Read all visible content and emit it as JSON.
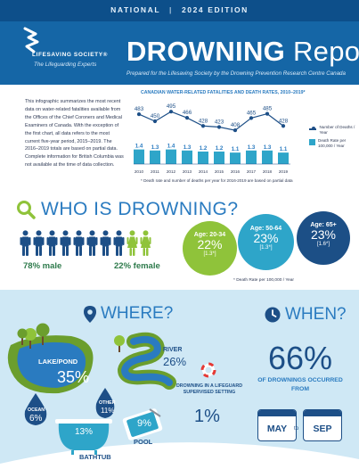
{
  "header": {
    "edition_left": "NATIONAL",
    "edition_sep": "|",
    "edition_right": "2024 EDITION",
    "org_name": "LIFESAVING SOCIETY®",
    "org_tagline": "The Lifeguarding Experts",
    "title_bold": "DROWNING",
    "title_light": "Report",
    "subtitle": "Prepared for the Lifesaving Society by the Drowning Prevention Research Centre Canada"
  },
  "intro": "This infographic summarizes the most recent data on water-related fatalities available from the Offices of the Chief Coroners and Medical Examiners of Canada. With the exception of the first chart, all data refers to the most current five-year period, 2015–2019. The 2016–2019 totals are based on partial data. Complete information for British Columbia was not available at the time of data collection.",
  "chart_data": {
    "type": "line",
    "title": "CANADIAN WATER-RELATED FATALITIES AND DEATH RATES, 2010–2019*",
    "categories": [
      "2010",
      "2011",
      "2012",
      "2013",
      "2014",
      "2015",
      "2016",
      "2017",
      "2018",
      "2019"
    ],
    "series": [
      {
        "name": "Number of Deaths / Year",
        "type": "line",
        "values": [
          483,
          450,
          495,
          466,
          428,
          423,
          408,
          465,
          485,
          428
        ]
      },
      {
        "name": "Death Rate per 100,000 / Year",
        "type": "bar",
        "values": [
          1.4,
          1.3,
          1.4,
          1.3,
          1.2,
          1.2,
          1.1,
          1.3,
          1.3,
          1.1
        ],
        "value_labels": [
          "1.4",
          "1.3",
          "1.4",
          "1.3",
          "1.2",
          "1.2",
          "1.1",
          "1.3",
          "1.3",
          "1.1"
        ]
      }
    ],
    "legend": [
      "Number of Deaths / Year",
      "Death Rate per 100,000 / Year"
    ],
    "legend_position": "right",
    "note": "* Death rate and number of deaths per year for 2016-2019 are based on partial data",
    "colors": {
      "line": "#1d4f87",
      "bar": "#2ea5c9"
    }
  },
  "who": {
    "title": "WHO IS DROWNING?",
    "male_label": "78% male",
    "female_label": "22% female",
    "male_count": 8,
    "female_count": 2,
    "male_color": "#1d4f87",
    "female_color": "#8fc33a",
    "ages": [
      {
        "label": "Age: 20-34",
        "pct": "22%",
        "rate": "[1.3*]"
      },
      {
        "label": "Age: 50-64",
        "pct": "23%",
        "rate": "[1.3*]"
      },
      {
        "label": "Age: 65+",
        "pct": "23%",
        "rate": "[1.6*]"
      }
    ],
    "rate_note": "* Death Rate per 100,000 / Year"
  },
  "where": {
    "title": "WHERE?",
    "lake_label": "LAKE/POND",
    "lake_pct": "35%",
    "river_label": "RIVER",
    "river_pct": "26%",
    "ocean_label": "OCEAN",
    "ocean_pct": "6%",
    "other_label": "OTHER",
    "other_pct": "11%",
    "bathtub_label": "BATHTUB",
    "bathtub_pct": "13%",
    "pool_label": "POOL",
    "pool_pct": "9%",
    "guard_label": "DROWNING IN A LIFEGUARD SUPERVISED SETTING",
    "guard_pct": "1%"
  },
  "when": {
    "title": "WHEN?",
    "pct": "66%",
    "text": "OF DROWNINGS OCCURRED FROM",
    "from": "MAY",
    "to_word": "to",
    "to": "SEP"
  }
}
